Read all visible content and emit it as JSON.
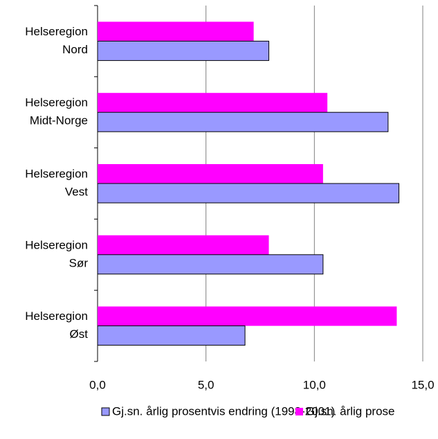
{
  "chart_data": {
    "type": "bar",
    "orientation": "horizontal",
    "categories": [
      [
        "Helseregion",
        "Nord"
      ],
      [
        "Helseregion",
        "Midt-Norge"
      ],
      [
        "Helseregion",
        "Vest"
      ],
      [
        "Helseregion",
        "Sør"
      ],
      [
        "Helseregion",
        "Øst"
      ]
    ],
    "series": [
      {
        "name": "Gj.sn. årlig prosentvis endring (1998-2001)",
        "color": "#9999ff",
        "values": [
          7.9,
          13.4,
          13.9,
          10.4,
          6.8
        ]
      },
      {
        "name": "Gj.sn. årlig prose",
        "color": "#ff00ff",
        "values": [
          7.2,
          10.6,
          10.4,
          7.9,
          13.8
        ]
      }
    ],
    "xlim": [
      0,
      15
    ],
    "xticks": [
      {
        "value": 0,
        "label": "0,0"
      },
      {
        "value": 5,
        "label": "5,0"
      },
      {
        "value": 10,
        "label": "10,0"
      },
      {
        "value": 15,
        "label": "15,0"
      }
    ],
    "grid": true,
    "legend": "bottom"
  }
}
